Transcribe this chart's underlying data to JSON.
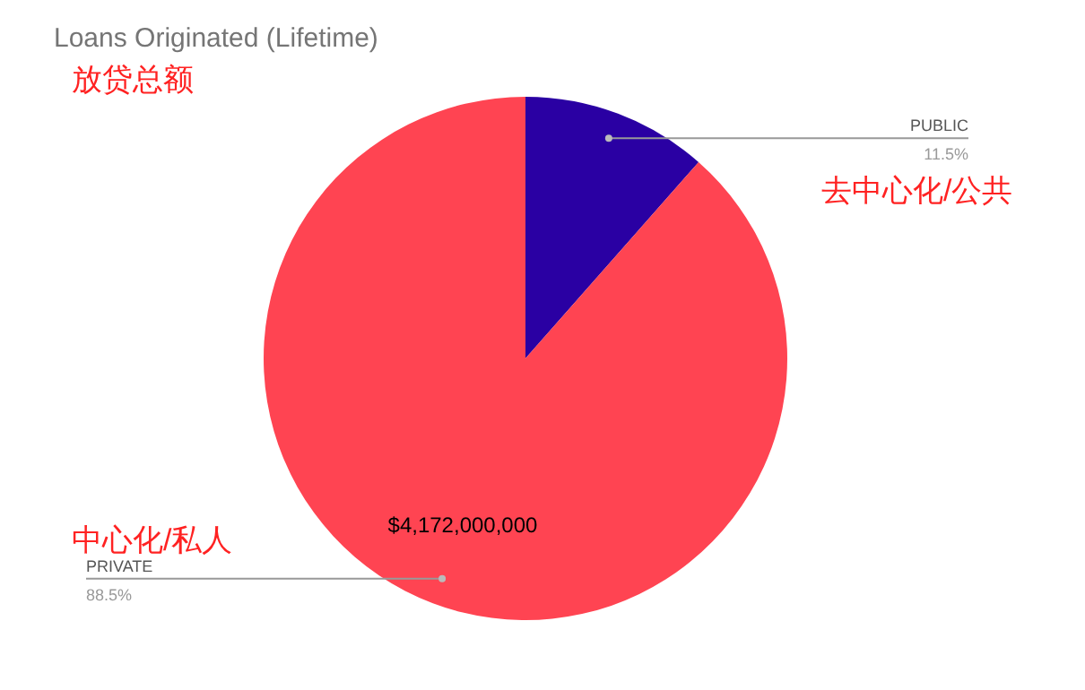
{
  "chart_data": {
    "type": "pie",
    "title": "Loans Originated (Lifetime)",
    "categories": [
      "PUBLIC",
      "PRIVATE"
    ],
    "values": [
      11.5,
      88.5
    ],
    "colors": [
      "#2a00a3",
      "#ff4452"
    ],
    "value_labels": [
      "11.5%",
      "88.5%"
    ],
    "annotations": [
      "放贷总额",
      "去中心化/公共",
      "$4,172,000,000",
      "中心化/私人"
    ]
  }
}
